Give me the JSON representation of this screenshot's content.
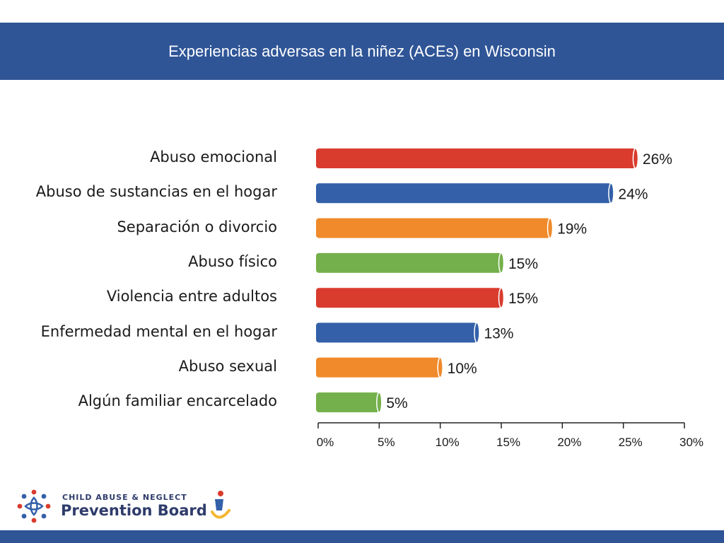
{
  "slide": {
    "title": "Experiencias adversas en la niñez (ACEs) en Wisconsin"
  },
  "chart_data": {
    "type": "bar",
    "orientation": "horizontal",
    "categories": [
      "Abuso emocional",
      "Abuso de sustancias en el hogar",
      "Separación o divorcio",
      "Abuso físico",
      "Violencia entre adultos",
      "Enfermedad mental en el hogar",
      "Abuso sexual",
      "Algún familiar encarcelado"
    ],
    "values": [
      26,
      24,
      19,
      15,
      15,
      13,
      10,
      5
    ],
    "data_labels": [
      "26%",
      "24%",
      "19%",
      "15%",
      "15%",
      "13%",
      "10%",
      "5%"
    ],
    "colors": [
      "#d93b2d",
      "#3360a9",
      "#f08a2a",
      "#74b04b",
      "#d93b2d",
      "#3360a9",
      "#f08a2a",
      "#74b04b"
    ],
    "xlim": [
      0,
      30
    ],
    "xticks": [
      "0%",
      "5%",
      "10%",
      "15%",
      "20%",
      "25%",
      "30%"
    ],
    "grid": false,
    "legend": "none",
    "title": "",
    "xlabel": "",
    "ylabel": ""
  },
  "branding": {
    "org_line1": "CHILD ABUSE & NEGLECT",
    "org_line2": "Prevention Board",
    "primary_color": "#2f5597"
  }
}
